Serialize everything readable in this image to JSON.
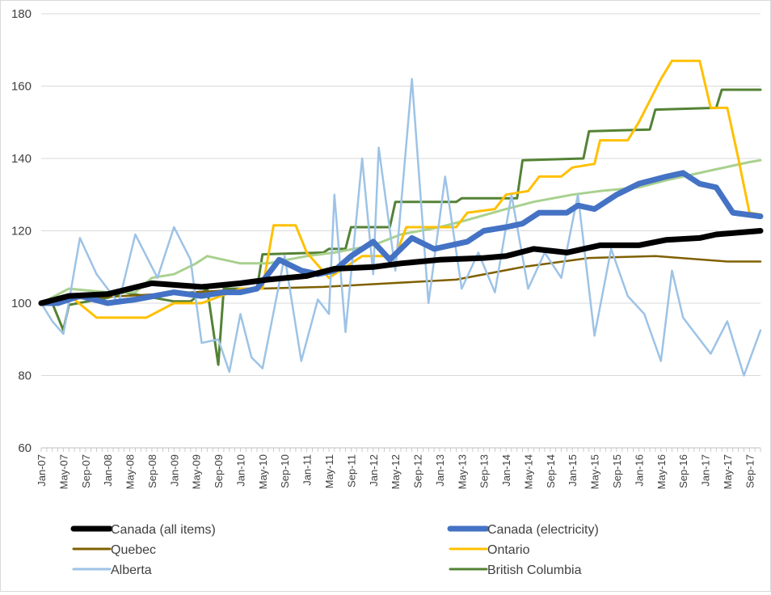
{
  "chart_data": {
    "type": "line",
    "title": "",
    "xlabel": "",
    "ylabel": "",
    "ylim": [
      60,
      180
    ],
    "yticks": [
      60,
      80,
      100,
      120,
      140,
      160,
      180
    ],
    "grid": "horizontal",
    "legend_position": "bottom",
    "x_tick_labels": [
      "Jan-07",
      "May-07",
      "Sep-07",
      "Jan-08",
      "May-08",
      "Sep-08",
      "Jan-09",
      "May-09",
      "Sep-09",
      "Jan-10",
      "May-10",
      "Sep-10",
      "Jan-11",
      "May-11",
      "Sep-11",
      "Jan-12",
      "May-12",
      "Sep-12",
      "Jan-13",
      "May-13",
      "Sep-13",
      "Jan-14",
      "May-14",
      "Sep-14",
      "Jan-15",
      "May-15",
      "Sep-15",
      "Jan-16",
      "May-16",
      "Sep-16",
      "Jan-17",
      "May-17",
      "Sep-17"
    ],
    "x_note": "Monthly data, Jan-07 through Nov-17; each series keyed by month (YYYY-MM) and value",
    "series": [
      {
        "name": "Canada (all items)",
        "color": "#000000",
        "width": 7,
        "points": [
          [
            "2007-01",
            100
          ],
          [
            "2007-06",
            102
          ],
          [
            "2008-01",
            102.5
          ],
          [
            "2008-09",
            105.5
          ],
          [
            "2009-06",
            104.5
          ],
          [
            "2010-01",
            105.5
          ],
          [
            "2010-06",
            106.5
          ],
          [
            "2011-01",
            107.5
          ],
          [
            "2011-06",
            109.5
          ],
          [
            "2012-01",
            110
          ],
          [
            "2012-06",
            111
          ],
          [
            "2013-01",
            112
          ],
          [
            "2013-09",
            112.5
          ],
          [
            "2014-01",
            113
          ],
          [
            "2014-06",
            115
          ],
          [
            "2014-12",
            114
          ],
          [
            "2015-06",
            116
          ],
          [
            "2016-01",
            116
          ],
          [
            "2016-06",
            117.5
          ],
          [
            "2016-12",
            118
          ],
          [
            "2017-03",
            119
          ],
          [
            "2017-11",
            120
          ]
        ]
      },
      {
        "name": "Canada (electricity)",
        "color": "#4472C4",
        "width": 7,
        "points": [
          [
            "2007-01",
            100
          ],
          [
            "2007-04",
            100
          ],
          [
            "2007-08",
            102
          ],
          [
            "2008-01",
            100
          ],
          [
            "2008-06",
            101
          ],
          [
            "2009-01",
            103
          ],
          [
            "2009-06",
            102
          ],
          [
            "2009-10",
            103
          ],
          [
            "2010-01",
            103
          ],
          [
            "2010-04",
            104
          ],
          [
            "2010-08",
            112
          ],
          [
            "2010-12",
            109
          ],
          [
            "2011-03",
            108
          ],
          [
            "2011-06",
            109
          ],
          [
            "2011-09",
            113
          ],
          [
            "2012-01",
            117
          ],
          [
            "2012-04",
            112
          ],
          [
            "2012-08",
            118
          ],
          [
            "2012-12",
            115
          ],
          [
            "2013-06",
            117
          ],
          [
            "2013-09",
            120
          ],
          [
            "2014-01",
            121
          ],
          [
            "2014-04",
            122
          ],
          [
            "2014-07",
            125
          ],
          [
            "2014-12",
            125
          ],
          [
            "2015-02",
            127
          ],
          [
            "2015-05",
            126
          ],
          [
            "2015-09",
            130
          ],
          [
            "2016-01",
            133
          ],
          [
            "2016-06",
            135
          ],
          [
            "2016-09",
            136
          ],
          [
            "2016-12",
            133
          ],
          [
            "2017-03",
            132
          ],
          [
            "2017-06",
            125
          ],
          [
            "2017-11",
            124
          ]
        ]
      },
      {
        "name": "Quebec",
        "color": "#7F6000",
        "width": 2.5,
        "points": [
          [
            "2007-01",
            100
          ],
          [
            "2007-04",
            101
          ],
          [
            "2008-04",
            102
          ],
          [
            "2009-04",
            103
          ],
          [
            "2010-04",
            104
          ],
          [
            "2011-04",
            104.5
          ],
          [
            "2012-04",
            105.5
          ],
          [
            "2013-04",
            106.5
          ],
          [
            "2014-04",
            110
          ],
          [
            "2015-04",
            112.5
          ],
          [
            "2016-04",
            113
          ],
          [
            "2017-05",
            111.5
          ],
          [
            "2017-11",
            111.5
          ]
        ]
      },
      {
        "name": "Ontario",
        "color": "#FFC000",
        "width": 3,
        "points": [
          [
            "2007-01",
            100
          ],
          [
            "2007-07",
            101
          ],
          [
            "2007-11",
            96
          ],
          [
            "2008-03",
            96
          ],
          [
            "2008-08",
            96
          ],
          [
            "2009-01",
            100
          ],
          [
            "2009-06",
            100
          ],
          [
            "2010-01",
            104
          ],
          [
            "2010-05",
            104
          ],
          [
            "2010-07",
            121.5
          ],
          [
            "2010-11",
            121.5
          ],
          [
            "2011-01",
            114
          ],
          [
            "2011-05",
            107
          ],
          [
            "2011-11",
            113
          ],
          [
            "2012-05",
            113
          ],
          [
            "2012-07",
            121
          ],
          [
            "2013-04",
            121
          ],
          [
            "2013-06",
            125
          ],
          [
            "2013-11",
            126
          ],
          [
            "2014-01",
            130
          ],
          [
            "2014-05",
            131
          ],
          [
            "2014-07",
            135
          ],
          [
            "2014-11",
            135
          ],
          [
            "2015-01",
            137.5
          ],
          [
            "2015-05",
            138.5
          ],
          [
            "2015-06",
            145
          ],
          [
            "2015-11",
            145
          ],
          [
            "2016-01",
            150
          ],
          [
            "2016-05",
            162
          ],
          [
            "2016-07",
            167
          ],
          [
            "2016-12",
            167
          ],
          [
            "2017-02",
            154
          ],
          [
            "2017-05",
            154
          ],
          [
            "2017-07",
            140
          ],
          [
            "2017-09",
            125
          ],
          [
            "2017-11",
            124.5
          ]
        ]
      },
      {
        "name": "Alberta",
        "color": "#9DC3E6",
        "width": 2.5,
        "points": [
          [
            "2007-01",
            100
          ],
          [
            "2007-03",
            95
          ],
          [
            "2007-05",
            91.5
          ],
          [
            "2007-08",
            118
          ],
          [
            "2007-11",
            108
          ],
          [
            "2008-03",
            100
          ],
          [
            "2008-06",
            119
          ],
          [
            "2008-10",
            107
          ],
          [
            "2009-01",
            121
          ],
          [
            "2009-04",
            112
          ],
          [
            "2009-06",
            89
          ],
          [
            "2009-09",
            90
          ],
          [
            "2009-11",
            81
          ],
          [
            "2010-01",
            97
          ],
          [
            "2010-03",
            85
          ],
          [
            "2010-05",
            82
          ],
          [
            "2010-09",
            113
          ],
          [
            "2010-12",
            84
          ],
          [
            "2011-03",
            101
          ],
          [
            "2011-05",
            97
          ],
          [
            "2011-06",
            130
          ],
          [
            "2011-08",
            92
          ],
          [
            "2011-11",
            140
          ],
          [
            "2012-01",
            108
          ],
          [
            "2012-02",
            143
          ],
          [
            "2012-05",
            109
          ],
          [
            "2012-08",
            162
          ],
          [
            "2012-11",
            100
          ],
          [
            "2013-02",
            135
          ],
          [
            "2013-05",
            104
          ],
          [
            "2013-08",
            114
          ],
          [
            "2013-11",
            103
          ],
          [
            "2014-02",
            130
          ],
          [
            "2014-05",
            104
          ],
          [
            "2014-08",
            114
          ],
          [
            "2014-11",
            107
          ],
          [
            "2015-02",
            130
          ],
          [
            "2015-05",
            91
          ],
          [
            "2015-08",
            115
          ],
          [
            "2015-11",
            102
          ],
          [
            "2016-02",
            97
          ],
          [
            "2016-05",
            84
          ],
          [
            "2016-07",
            109
          ],
          [
            "2016-09",
            96
          ],
          [
            "2016-11",
            92
          ],
          [
            "2017-02",
            86
          ],
          [
            "2017-05",
            95
          ],
          [
            "2017-08",
            80
          ],
          [
            "2017-11",
            92.5
          ]
        ]
      },
      {
        "name": "British Columbia",
        "color": "#548235",
        "width": 3,
        "points": [
          [
            "2007-01",
            100
          ],
          [
            "2007-03",
            100
          ],
          [
            "2007-05",
            92.5
          ],
          [
            "2007-06",
            99.5
          ],
          [
            "2008-01",
            101.5
          ],
          [
            "2008-04",
            103
          ],
          [
            "2009-01",
            100.5
          ],
          [
            "2009-04",
            100.5
          ],
          [
            "2009-07",
            104
          ],
          [
            "2009-09",
            83
          ],
          [
            "2009-10",
            104
          ],
          [
            "2010-04",
            104
          ],
          [
            "2010-05",
            113.5
          ],
          [
            "2011-04",
            114
          ],
          [
            "2011-05",
            115
          ],
          [
            "2011-08",
            115
          ],
          [
            "2011-09",
            121
          ],
          [
            "2012-04",
            121
          ],
          [
            "2012-05",
            128
          ],
          [
            "2013-04",
            128
          ],
          [
            "2013-05",
            129
          ],
          [
            "2014-03",
            129
          ],
          [
            "2014-04",
            139.5
          ],
          [
            "2015-03",
            140
          ],
          [
            "2015-04",
            147.5
          ],
          [
            "2016-03",
            148
          ],
          [
            "2016-04",
            153.5
          ],
          [
            "2017-03",
            154
          ],
          [
            "2017-04",
            159
          ],
          [
            "2017-11",
            159
          ]
        ]
      },
      {
        "name": "",
        "color": "#A9D18E",
        "width": 3,
        "points": [
          [
            "2007-01",
            100
          ],
          [
            "2007-06",
            104
          ],
          [
            "2008-01",
            103
          ],
          [
            "2008-06",
            103
          ],
          [
            "2008-09",
            107
          ],
          [
            "2009-01",
            108
          ],
          [
            "2009-05",
            111
          ],
          [
            "2009-07",
            113
          ],
          [
            "2010-01",
            111
          ],
          [
            "2010-06",
            111
          ],
          [
            "2011-01",
            113
          ],
          [
            "2011-06",
            114
          ],
          [
            "2012-01",
            116
          ],
          [
            "2012-06",
            119
          ],
          [
            "2013-01",
            121
          ],
          [
            "2013-06",
            123
          ],
          [
            "2014-01",
            126
          ],
          [
            "2014-06",
            128
          ],
          [
            "2015-01",
            130
          ],
          [
            "2015-06",
            131
          ],
          [
            "2016-01",
            132
          ],
          [
            "2016-06",
            134
          ],
          [
            "2016-09",
            135
          ],
          [
            "2017-03",
            137
          ],
          [
            "2017-09",
            139
          ],
          [
            "2017-11",
            139.5
          ]
        ]
      }
    ],
    "legend": [
      {
        "label": "Canada (all items)",
        "color": "#000000",
        "width": 7,
        "col": 0,
        "row": 0
      },
      {
        "label": "Canada (electricity)",
        "color": "#4472C4",
        "width": 7,
        "col": 1,
        "row": 0
      },
      {
        "label": "Quebec",
        "color": "#7F6000",
        "width": 3,
        "col": 0,
        "row": 1
      },
      {
        "label": "Ontario",
        "color": "#FFC000",
        "width": 3,
        "col": 1,
        "row": 1
      },
      {
        "label": "Alberta",
        "color": "#9DC3E6",
        "width": 3,
        "col": 0,
        "row": 2
      },
      {
        "label": "British Columbia",
        "color": "#548235",
        "width": 3,
        "col": 1,
        "row": 2
      }
    ]
  }
}
